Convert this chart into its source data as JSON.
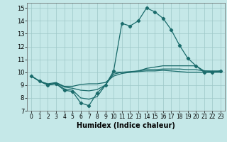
{
  "xlabel": "Humidex (Indice chaleur)",
  "bg_color": "#c5e8e8",
  "grid_color": "#9dc8c8",
  "line_color": "#1a6b6b",
  "xlim": [
    -0.5,
    23.5
  ],
  "ylim": [
    7,
    15.4
  ],
  "xticks": [
    0,
    1,
    2,
    3,
    4,
    5,
    6,
    7,
    8,
    9,
    10,
    11,
    12,
    13,
    14,
    15,
    16,
    17,
    18,
    19,
    20,
    21,
    22,
    23
  ],
  "yticks": [
    7,
    8,
    9,
    10,
    11,
    12,
    13,
    14,
    15
  ],
  "lines": [
    {
      "x": [
        0,
        1,
        2,
        3,
        4,
        5,
        6,
        7,
        8,
        9,
        10,
        11,
        12,
        13,
        14,
        15,
        16,
        17,
        18,
        19,
        20,
        21,
        22,
        23
      ],
      "y": [
        9.7,
        9.3,
        9.0,
        9.1,
        8.6,
        8.5,
        7.6,
        7.4,
        8.4,
        9.0,
        10.1,
        13.8,
        13.6,
        14.0,
        15.0,
        14.7,
        14.2,
        13.3,
        12.1,
        11.1,
        10.5,
        10.0,
        10.0,
        10.1
      ],
      "marker": true
    },
    {
      "x": [
        0,
        1,
        2,
        3,
        4,
        5,
        6,
        7,
        8,
        9,
        10,
        11,
        12,
        13,
        14,
        15,
        16,
        17,
        18,
        19,
        20,
        21,
        22,
        23
      ],
      "y": [
        9.7,
        9.3,
        9.1,
        9.2,
        8.9,
        8.9,
        9.05,
        9.1,
        9.1,
        9.2,
        9.7,
        9.9,
        10.0,
        10.1,
        10.3,
        10.4,
        10.5,
        10.5,
        10.5,
        10.5,
        10.5,
        10.1,
        10.1,
        10.1
      ],
      "marker": false
    },
    {
      "x": [
        0,
        1,
        2,
        3,
        4,
        5,
        6,
        7,
        8,
        9,
        10,
        11,
        12,
        13,
        14,
        15,
        16,
        17,
        18,
        19,
        20,
        21,
        22,
        23
      ],
      "y": [
        9.7,
        9.3,
        9.05,
        9.15,
        8.85,
        8.75,
        8.6,
        8.55,
        8.65,
        9.0,
        9.85,
        10.0,
        10.05,
        10.1,
        10.2,
        10.2,
        10.25,
        10.25,
        10.25,
        10.2,
        10.2,
        10.1,
        10.05,
        10.05
      ],
      "marker": false
    },
    {
      "x": [
        0,
        1,
        2,
        3,
        4,
        5,
        6,
        7,
        8,
        9,
        10,
        11,
        12,
        13,
        14,
        15,
        16,
        17,
        18,
        19,
        20,
        21,
        22,
        23
      ],
      "y": [
        9.7,
        9.3,
        9.0,
        9.1,
        8.7,
        8.6,
        8.0,
        7.9,
        8.1,
        9.0,
        10.0,
        10.0,
        10.0,
        10.05,
        10.1,
        10.1,
        10.15,
        10.1,
        10.05,
        10.0,
        10.0,
        10.0,
        10.0,
        10.0
      ],
      "marker": false
    }
  ]
}
